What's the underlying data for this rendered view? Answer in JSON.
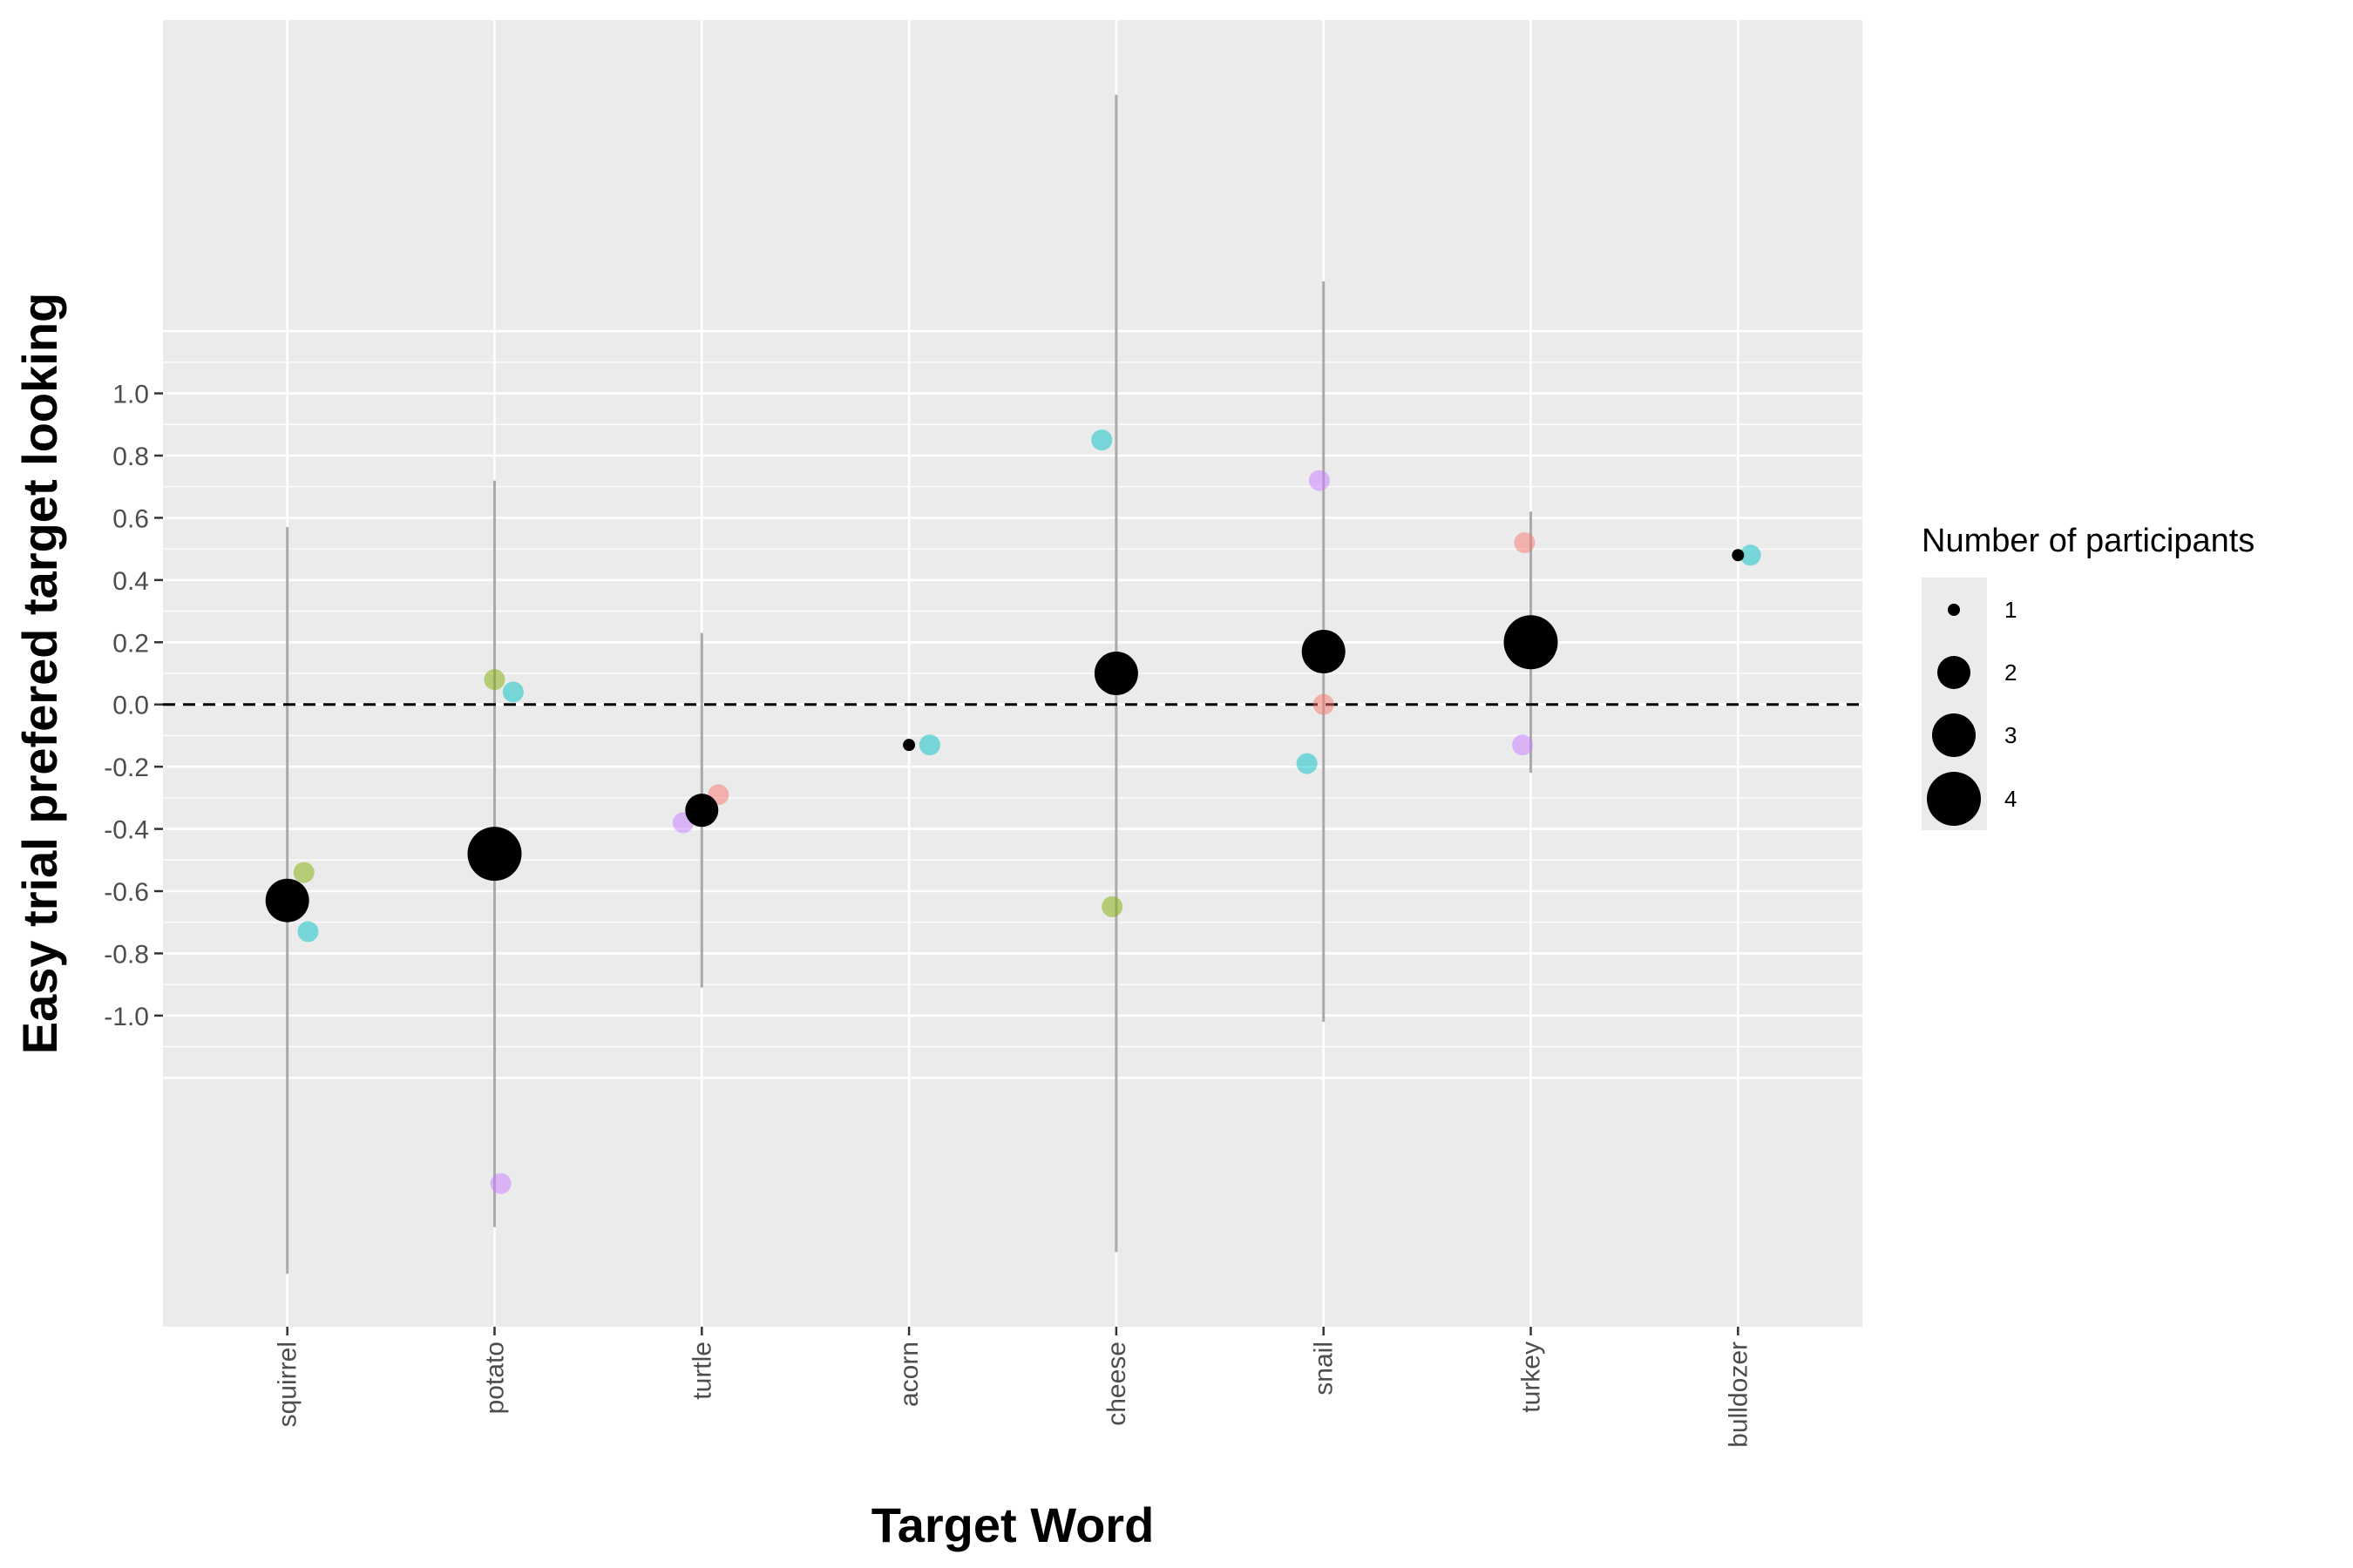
{
  "chart_data": {
    "type": "scatter",
    "xlabel": "Target Word",
    "ylabel": "Easy trial prefered target looking",
    "categories": [
      "squirrel",
      "potato",
      "turtle",
      "acorn",
      "cheese",
      "snail",
      "turkey",
      "bulldozer"
    ],
    "ylim": [
      -2.0,
      2.2
    ],
    "yticks": [
      "1.0",
      "0.8",
      "0.6",
      "0.4",
      "0.2",
      "0.0",
      "-0.2",
      "-0.4",
      "-0.6",
      "-0.8",
      "-1.0"
    ],
    "ytick_values": [
      1.0,
      0.8,
      0.6,
      0.4,
      0.2,
      0.0,
      -0.2,
      -0.4,
      -0.6,
      -0.8,
      -1.0
    ],
    "grid": true,
    "reference_line": 0.0,
    "series": [
      {
        "marks": "mean",
        "color": "#000000",
        "points": [
          {
            "category": "squirrel",
            "y": -0.63,
            "n": 3,
            "low": -1.83,
            "high": 0.57
          },
          {
            "category": "potato",
            "y": -0.48,
            "n": 4,
            "low": -1.68,
            "high": 0.72
          },
          {
            "category": "turtle",
            "y": -0.34,
            "n": 2,
            "low": -0.91,
            "high": 0.23
          },
          {
            "category": "acorn",
            "y": -0.13,
            "n": 1
          },
          {
            "category": "cheese",
            "y": 0.1,
            "n": 3,
            "low": -1.76,
            "high": 1.96
          },
          {
            "category": "snail",
            "y": 0.17,
            "n": 3,
            "low": -1.02,
            "high": 1.36
          },
          {
            "category": "turkey",
            "y": 0.2,
            "n": 4,
            "low": -0.22,
            "high": 0.62
          },
          {
            "category": "bulldozer",
            "y": 0.48,
            "n": 1
          }
        ]
      },
      {
        "marks": "participant",
        "points": [
          {
            "category": "squirrel",
            "dx": 0.08,
            "y": -0.54,
            "color": "#7CAE00"
          },
          {
            "category": "squirrel",
            "dx": 0.1,
            "y": -0.73,
            "color": "#00BFC4"
          },
          {
            "category": "potato",
            "dx": -0.06,
            "y": -0.5,
            "color": "#F8766D"
          },
          {
            "category": "potato",
            "dx": 0.0,
            "y": 0.08,
            "color": "#7CAE00"
          },
          {
            "category": "potato",
            "dx": 0.09,
            "y": 0.04,
            "color": "#00BFC4"
          },
          {
            "category": "potato",
            "dx": 0.03,
            "y": -1.54,
            "color": "#C77CFF"
          },
          {
            "category": "turtle",
            "dx": 0.08,
            "y": -0.29,
            "color": "#F8766D"
          },
          {
            "category": "turtle",
            "dx": -0.09,
            "y": -0.38,
            "color": "#C77CFF"
          },
          {
            "category": "acorn",
            "dx": 0.1,
            "y": -0.13,
            "color": "#00BFC4"
          },
          {
            "category": "cheese",
            "dx": -0.07,
            "y": 0.85,
            "color": "#00BFC4"
          },
          {
            "category": "cheese",
            "dx": -0.02,
            "y": -0.65,
            "color": "#7CAE00"
          },
          {
            "category": "snail",
            "dx": -0.02,
            "y": 0.72,
            "color": "#C77CFF"
          },
          {
            "category": "snail",
            "dx": 0.0,
            "y": 0.0,
            "color": "#F8766D"
          },
          {
            "category": "snail",
            "dx": -0.08,
            "y": -0.19,
            "color": "#00BFC4"
          },
          {
            "category": "turkey",
            "dx": -0.03,
            "y": 0.52,
            "color": "#F8766D"
          },
          {
            "category": "turkey",
            "dx": 0.07,
            "y": 0.21,
            "color": "#7CAE00"
          },
          {
            "category": "turkey",
            "dx": -0.04,
            "y": -0.13,
            "color": "#C77CFF"
          },
          {
            "category": "bulldozer",
            "dx": 0.06,
            "y": 0.48,
            "color": "#00BFC4"
          }
        ]
      }
    ],
    "legend": {
      "title": "Number of participants",
      "position": "right",
      "entries": [
        "1",
        "2",
        "3",
        "4"
      ]
    },
    "colors": {
      "panel": "#EBEBEB",
      "grid": "#FFFFFF",
      "errorbar": "#AAAAAA",
      "mean_point": "#000000"
    }
  }
}
